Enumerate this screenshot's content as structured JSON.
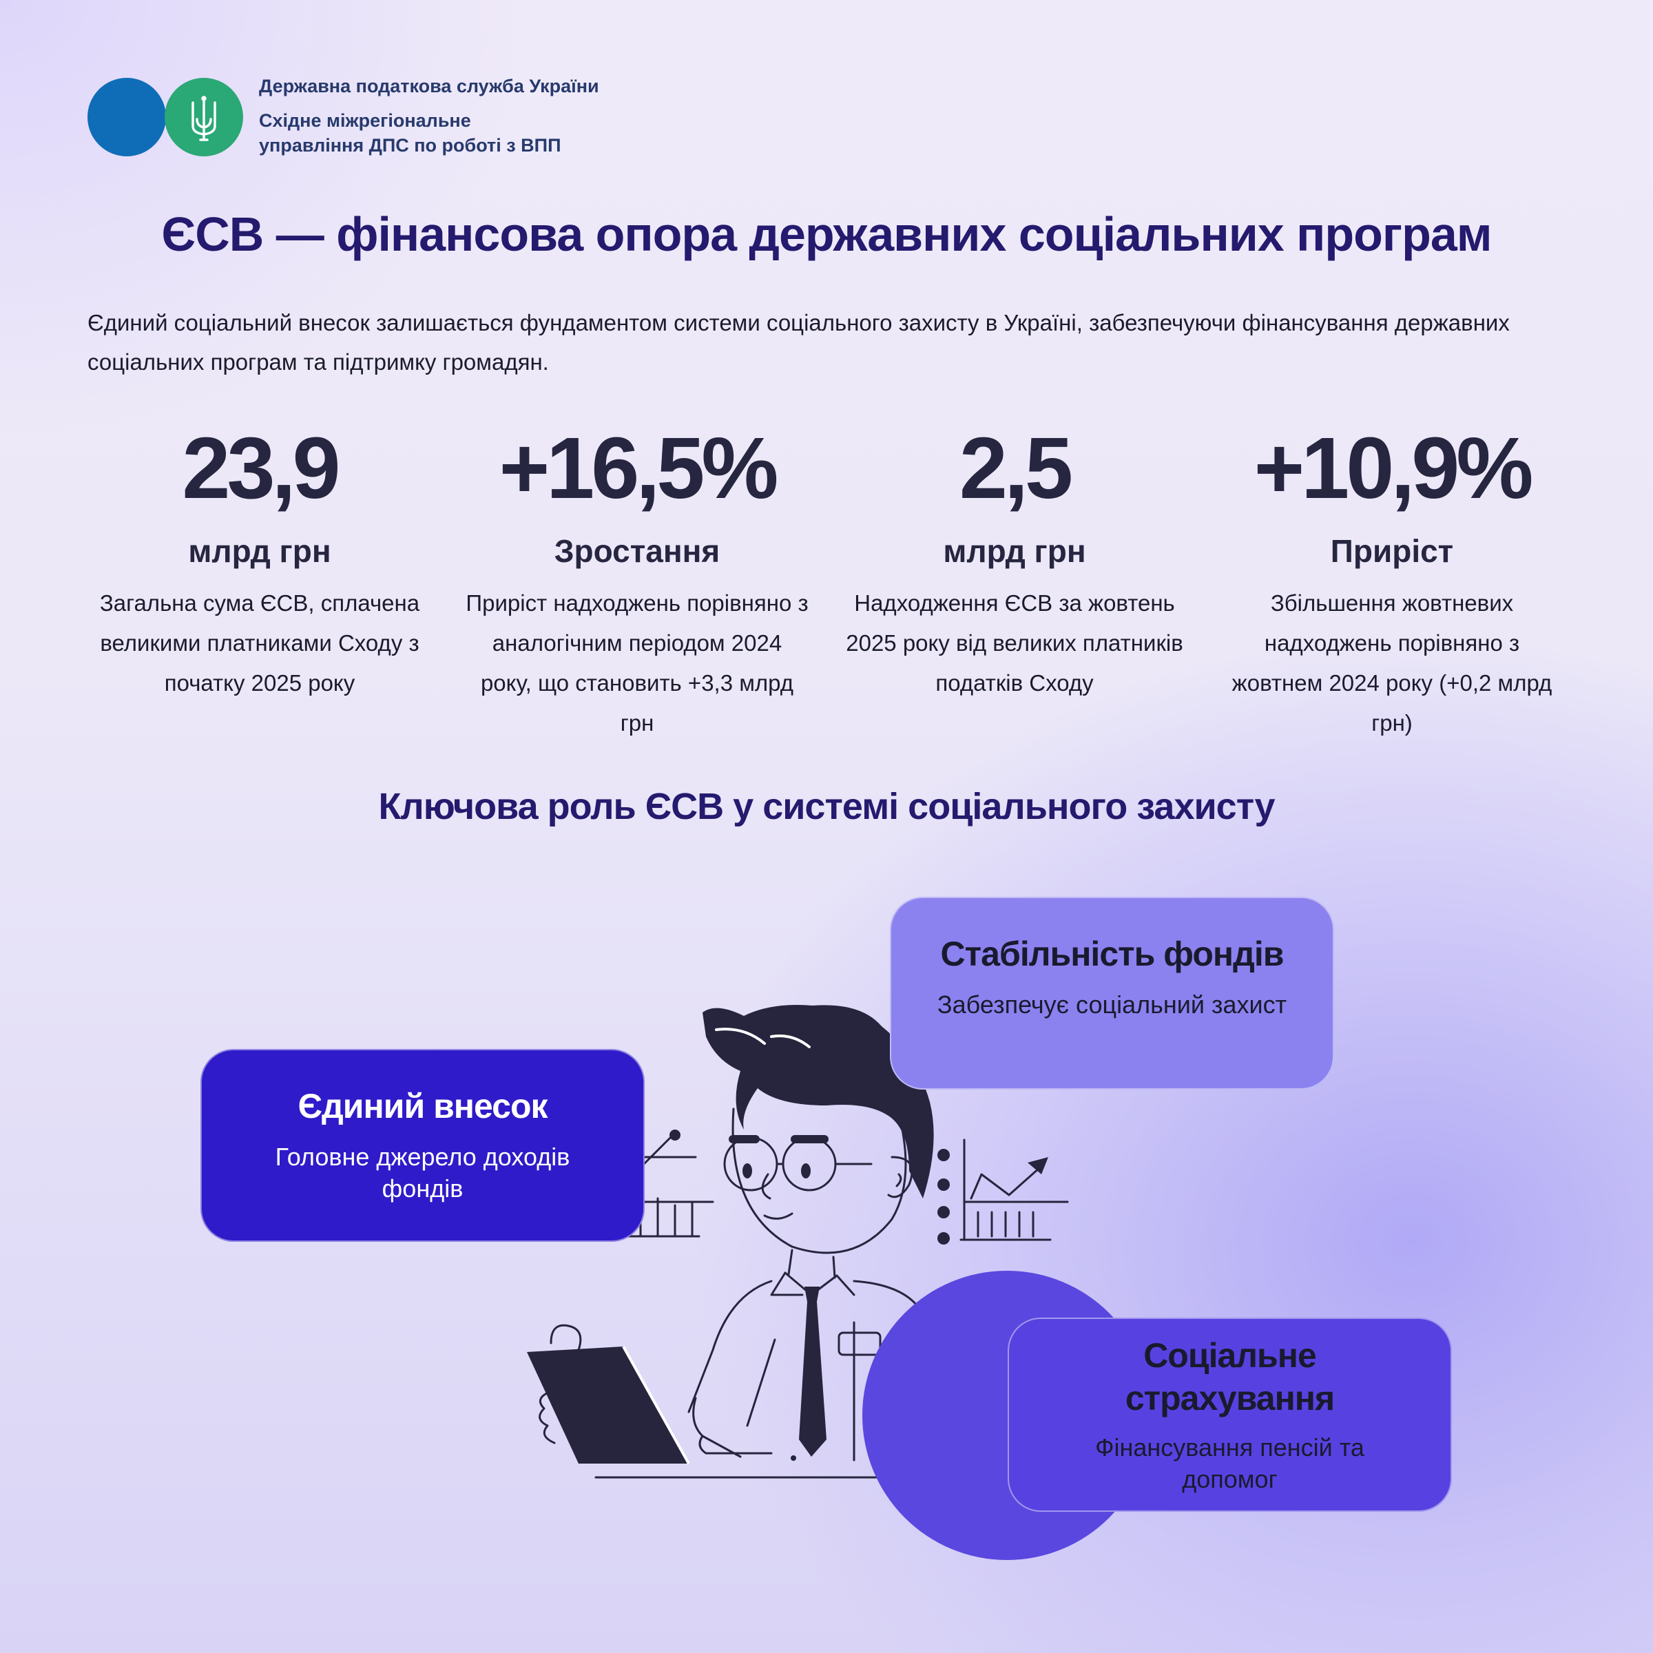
{
  "header": {
    "org_name": "Державна податкова служба України",
    "department_line1": "Східне міжрегіональне",
    "department_line2": "управління ДПС по роботі з ВПП"
  },
  "title": "ЄСВ — фінансова опора державних соціальних програм",
  "intro": "Єдиний соціальний внесок залишається фундаментом системи соціального захисту в Україні, забезпечуючи фінансування державних соціальних програм та підтримку громадян.",
  "stats": [
    {
      "value": "23,9",
      "label": "млрд грн",
      "description": "Загальна сума ЄСВ, сплачена великими платниками Сходу з початку 2025 року"
    },
    {
      "value": "+16,5%",
      "label": "Зростання",
      "description": "Приріст надходжень порівняно з аналогічним періодом 2024 року, що становить +3,3 млрд грн"
    },
    {
      "value": "2,5",
      "label": "млрд грн",
      "description": "Надходження ЄСВ за жовтень 2025 року від великих платників податків Сходу"
    },
    {
      "value": "+10,9%",
      "label": "Приріст",
      "description": "Збільшення жовтневих надходжень порівняно з жовтнем 2024 року (+0,2 млрд грн)"
    }
  ],
  "section_title": "Ключова роль ЄСВ у системі соціального захисту",
  "cards": {
    "stability": {
      "title": "Стабільність фондів",
      "text": "Забезпечує соціальний захист"
    },
    "single": {
      "title": "Єдиний внесок",
      "text": "Головне джерело доходів фондів"
    },
    "social": {
      "title_line1": "Соціальне",
      "title_line2": "страхування",
      "text": "Фінансування пенсій та допомог"
    }
  },
  "colors": {
    "title": "#241a6e",
    "logo_blue": "#0f6db7",
    "logo_green": "#2aa876",
    "card_stability": "#8b82ef",
    "card_single": "#2f1bc9",
    "card_social": "#5742e1"
  }
}
